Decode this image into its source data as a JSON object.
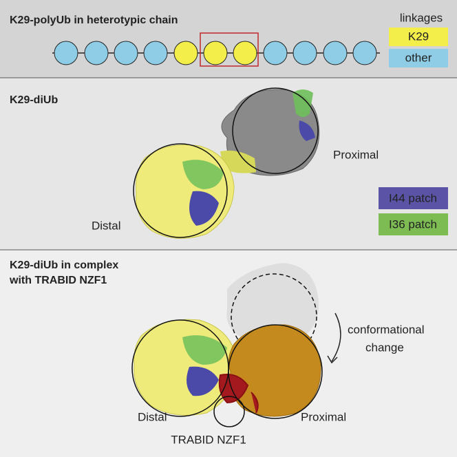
{
  "panels": [
    {
      "title": "K29-polyUb in heterotypic chain",
      "legend": {
        "title": "linkages",
        "items": [
          "K29",
          "other"
        ]
      }
    },
    {
      "title": "K29-diUb",
      "proximal": "Proximal",
      "distal": "Distal",
      "legend": [
        "I44 patch",
        "I36 patch"
      ]
    },
    {
      "title_lines": [
        "K29-diUb in complex",
        "with TRABID NZF1"
      ],
      "annotation_lines": [
        "conformational",
        "change"
      ],
      "distal": "Distal",
      "proximal": "Proximal",
      "nzf1_label": "TRABID NZF1"
    }
  ]
}
